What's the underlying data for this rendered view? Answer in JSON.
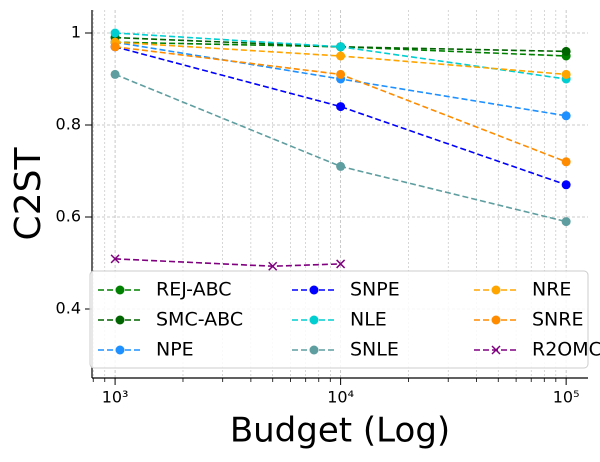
{
  "chart_data": {
    "type": "line",
    "xlabel": "Budget (Log)",
    "ylabel": "C2ST",
    "xscale": "log",
    "xlim": [
      790,
      125000
    ],
    "ylim": [
      0.25,
      1.05
    ],
    "xticks": [
      {
        "value": 1000,
        "label": "10³"
      },
      {
        "value": 10000,
        "label": "10⁴"
      },
      {
        "value": 100000,
        "label": "10⁵"
      }
    ],
    "xticks_minor": [
      800,
      900,
      2000,
      3000,
      4000,
      5000,
      6000,
      7000,
      8000,
      9000,
      20000,
      30000,
      40000,
      50000,
      60000,
      70000,
      80000,
      90000
    ],
    "yticks": [
      0.4,
      0.6,
      0.8,
      1.0
    ],
    "grid": true,
    "legend": "lower center",
    "legend_columns": 3,
    "series": [
      {
        "name": "REJ-ABC",
        "color": "#008000",
        "marker": "o",
        "x": [
          1000,
          10000,
          100000
        ],
        "values": [
          0.98,
          0.97,
          0.95
        ]
      },
      {
        "name": "SMC-ABC",
        "color": "#006400",
        "marker": "o",
        "x": [
          1000,
          10000,
          100000
        ],
        "values": [
          0.99,
          0.97,
          0.96
        ]
      },
      {
        "name": "NPE",
        "color": "#1e90ff",
        "marker": "o",
        "x": [
          1000,
          10000,
          100000
        ],
        "values": [
          0.98,
          0.9,
          0.82
        ]
      },
      {
        "name": "SNPE",
        "color": "#0000ff",
        "marker": "o",
        "x": [
          1000,
          10000,
          100000
        ],
        "values": [
          0.97,
          0.84,
          0.67
        ]
      },
      {
        "name": "NLE",
        "color": "#00ced1",
        "marker": "o",
        "x": [
          1000,
          10000,
          100000
        ],
        "values": [
          1.0,
          0.97,
          0.9
        ]
      },
      {
        "name": "SNLE",
        "color": "#5f9ea0",
        "marker": "o",
        "x": [
          1000,
          10000,
          100000
        ],
        "values": [
          0.91,
          0.71,
          0.59
        ]
      },
      {
        "name": "NRE",
        "color": "#ffa500",
        "marker": "o",
        "x": [
          1000,
          10000,
          100000
        ],
        "values": [
          0.98,
          0.95,
          0.91
        ]
      },
      {
        "name": "SNRE",
        "color": "#ff8c00",
        "marker": "o",
        "x": [
          1000,
          10000,
          100000
        ],
        "values": [
          0.97,
          0.91,
          0.72
        ]
      },
      {
        "name": "R2OMC",
        "color": "#800080",
        "marker": "x",
        "x": [
          1000,
          5000,
          10000
        ],
        "values": [
          0.509,
          0.493,
          0.498
        ]
      }
    ]
  }
}
